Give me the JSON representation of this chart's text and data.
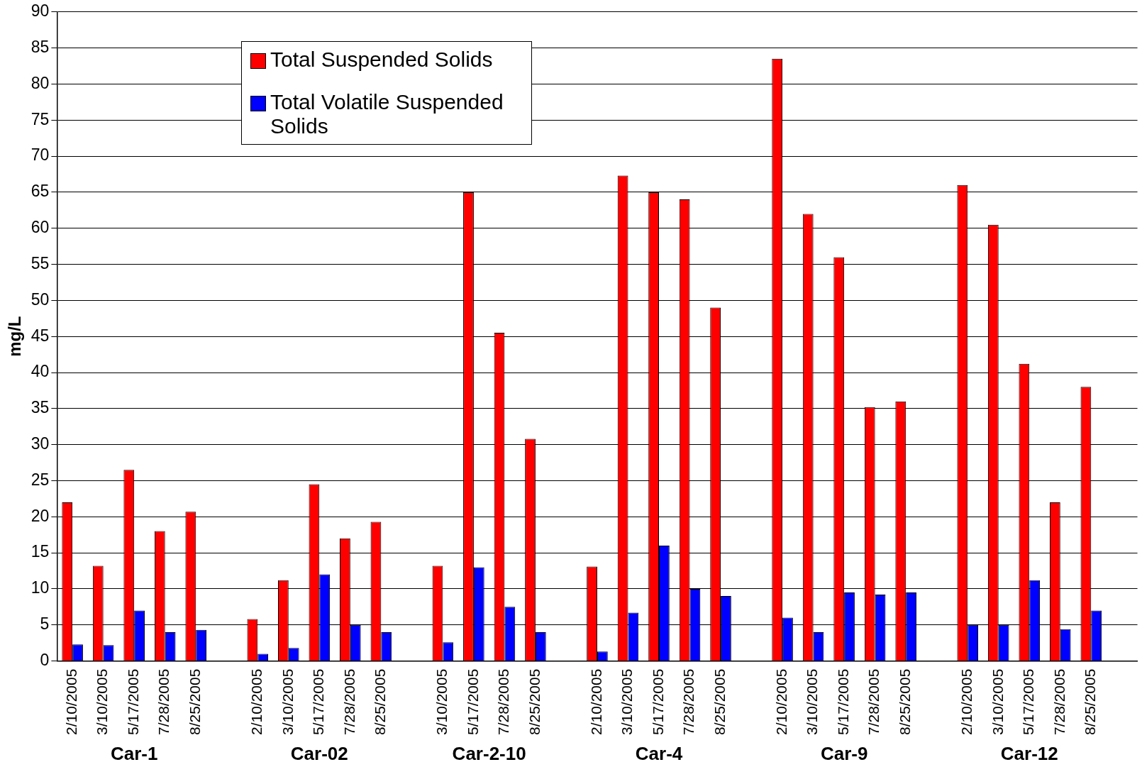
{
  "chart_data": {
    "type": "bar",
    "ylabel": "mg/L",
    "categories": [
      "2/10/2005",
      "3/10/2005",
      "5/17/2005",
      "7/28/2005",
      "8/25/2005",
      null,
      "2/10/2005",
      "3/10/2005",
      "5/17/2005",
      "7/28/2005",
      "8/25/2005",
      null,
      "3/10/2005",
      "5/17/2005",
      "7/28/2005",
      "8/25/2005",
      null,
      "2/10/2005",
      "3/10/2005",
      "5/17/2005",
      "7/28/2005",
      "8/25/2005",
      null,
      "2/10/2005",
      "3/10/2005",
      "5/17/2005",
      "7/28/2005",
      "8/25/2005",
      null,
      "2/10/2005",
      "3/10/2005",
      "5/17/2005",
      "7/28/2005",
      "8/25/2005",
      null
    ],
    "series": [
      {
        "name": "Total Suspended Solids",
        "color": "#ff0000",
        "values": [
          22,
          13.2,
          26.5,
          18,
          20.7,
          null,
          5.8,
          11.2,
          24.5,
          17,
          19.3,
          null,
          13.2,
          65,
          45.5,
          30.8,
          null,
          13.1,
          67.3,
          65,
          64,
          49,
          null,
          83.5,
          62,
          56,
          35.2,
          36,
          null,
          66,
          60.5,
          41.2,
          22,
          38,
          null
        ]
      },
      {
        "name": "Total Volatile Suspended Solids",
        "color": "#0000ff",
        "values": [
          2.3,
          2.2,
          7,
          4,
          4.3,
          null,
          1,
          1.8,
          12,
          5,
          4,
          null,
          2.6,
          13,
          7.5,
          4,
          null,
          1.3,
          6.7,
          16,
          10,
          9,
          null,
          6,
          4,
          9.5,
          9.2,
          9.5,
          null,
          5,
          5,
          11.2,
          4.4,
          7,
          null
        ]
      }
    ],
    "annotations": [
      "Car-1",
      "Car-02",
      "Car-2-10",
      "Car-4",
      "Car-9",
      "Car-12"
    ],
    "ylim": [
      0,
      90
    ],
    "yticks": [
      0,
      5,
      10,
      15,
      20,
      25,
      30,
      35,
      40,
      45,
      50,
      55,
      60,
      65,
      70,
      75,
      80,
      85,
      90
    ],
    "grid": "y",
    "legend": "top left"
  }
}
